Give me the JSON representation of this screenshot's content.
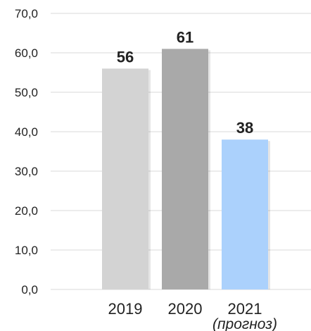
{
  "chart_data": {
    "type": "bar",
    "title": "",
    "xlabel": "",
    "ylabel": "",
    "categories": [
      "2019",
      "2020",
      "2021"
    ],
    "category_sublabels": [
      "",
      "",
      "(прогноз)"
    ],
    "values": [
      56,
      61,
      38
    ],
    "data_labels": [
      "56",
      "61",
      "38"
    ],
    "bar_colors": [
      "#d3d3d3",
      "#a9a9a9",
      "#abd1fc"
    ],
    "ylim": [
      0,
      70
    ],
    "yticks": [
      "0,0",
      "10,0",
      "20,0",
      "30,0",
      "40,0",
      "50,0",
      "60,0",
      "70,0"
    ],
    "grid": true,
    "legend": "none"
  }
}
